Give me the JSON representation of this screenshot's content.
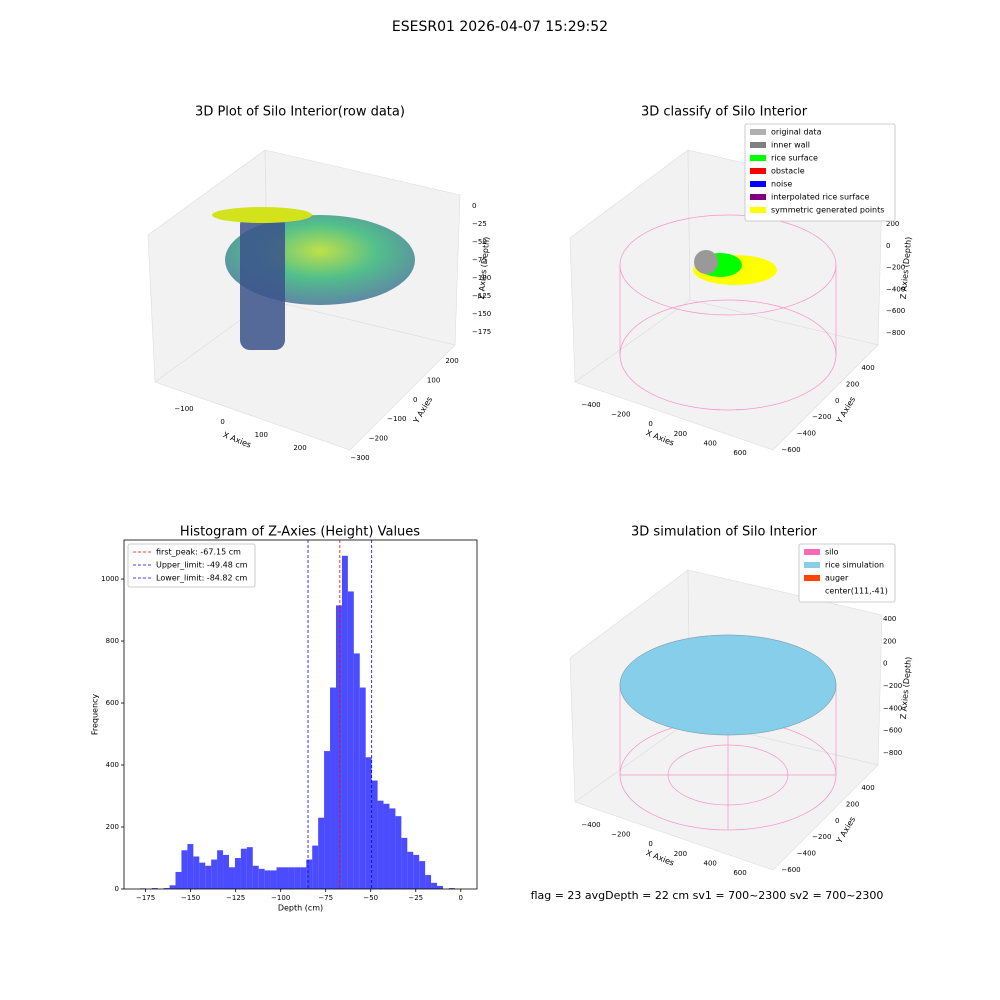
{
  "suptitle": "ESESR01 2026-04-07 15:29:52",
  "footer": "flag = 23  avgDepth = 22 cm    sv1 = 700~2300  sv2 = 700~2300",
  "chart_data": [
    {
      "type": "scatter3d",
      "title": "3D Plot of Silo Interior(row data)",
      "xlabel": "X Axies",
      "ylabel": "Y Axies",
      "zlabel": "Z Axies (Depth)",
      "xticks": [
        {
          "value": -100,
          "label": "−100"
        },
        0,
        100,
        200
      ],
      "yticks": [
        200,
        100,
        0,
        {
          "value": -100,
          "label": "−100"
        },
        {
          "value": -200,
          "label": "−200"
        },
        {
          "value": -300,
          "label": "−300"
        }
      ],
      "zticks": [
        0,
        {
          "value": -25,
          "label": "−25"
        },
        {
          "value": -50,
          "label": "−50"
        },
        {
          "value": -75,
          "label": "−75"
        },
        {
          "value": -100,
          "label": "−100"
        },
        {
          "value": -125,
          "label": "−125"
        },
        {
          "value": -150,
          "label": "−150"
        },
        {
          "value": -175,
          "label": "−175"
        }
      ]
    },
    {
      "type": "scatter3d",
      "title": "3D classify of Silo Interior",
      "xlabel": "X Axies",
      "ylabel": "Y Axies",
      "zlabel": "Z Axies (Depth)",
      "xticks": [
        {
          "value": -400,
          "label": "−400"
        },
        {
          "value": -200,
          "label": "−200"
        },
        0,
        200,
        400,
        600
      ],
      "yticks": [
        400,
        200,
        0,
        {
          "value": -200,
          "label": "−200"
        },
        {
          "value": -400,
          "label": "−400"
        },
        {
          "value": -600,
          "label": "−600"
        }
      ],
      "zticks": [
        200,
        0,
        {
          "value": -200,
          "label": "−200"
        },
        {
          "value": -400,
          "label": "−400"
        },
        {
          "value": -600,
          "label": "−600"
        },
        {
          "value": -800,
          "label": "−800"
        }
      ],
      "legend": [
        {
          "name": "original data",
          "color": "#b0b0b0"
        },
        {
          "name": "inner wall",
          "color": "#808080"
        },
        {
          "name": "rice surface",
          "color": "#00ff00"
        },
        {
          "name": "obstacle",
          "color": "#ff0000"
        },
        {
          "name": "noise",
          "color": "#0000ff"
        },
        {
          "name": "interpolated rice surface",
          "color": "#800080"
        },
        {
          "name": "symmetric generated points",
          "color": "#ffff00"
        }
      ]
    },
    {
      "type": "histogram",
      "title": "Histogram of Z-Axies (Height) Values",
      "xlabel": "Depth (cm)",
      "ylabel": "Frequency",
      "color": "#0000ff",
      "bins": [
        -178.2,
        -174.9,
        -171.6,
        -168.3,
        -165,
        -161.7,
        -158.4,
        -155.1,
        -151.8,
        -148.5,
        -145.2,
        -141.9,
        -138.6,
        -135.3,
        -132,
        -128.7,
        -125.4,
        -122.1,
        -118.8,
        -115.5,
        -112.2,
        -108.9,
        -105.6,
        -102.3,
        -99,
        -95.7,
        -92.4,
        -89.1,
        -85.8,
        -82.5,
        -79.2,
        -75.9,
        -72.6,
        -69.3,
        -66,
        -62.7,
        -59.4,
        -56.1,
        -52.8,
        -49.5,
        -46.2,
        -42.9,
        -39.6,
        -36.3,
        -33,
        -29.7,
        -26.4,
        -23.1,
        -19.8,
        -16.5,
        -13.2,
        -9.9,
        -6.6,
        -3.3
      ],
      "values": [
        2,
        0,
        3,
        0,
        3,
        12,
        55,
        125,
        145,
        105,
        85,
        75,
        95,
        125,
        110,
        70,
        100,
        130,
        135,
        75,
        65,
        60,
        60,
        70,
        70,
        70,
        70,
        70,
        95,
        140,
        230,
        445,
        650,
        915,
        1075,
        960,
        760,
        650,
        425,
        350,
        285,
        275,
        260,
        235,
        165,
        120,
        110,
        90,
        45,
        20,
        10,
        0,
        3
      ],
      "xlim": [
        -187,
        9
      ],
      "ylim": [
        0,
        1126
      ],
      "xticks": [
        {
          "value": -175,
          "label": "−175"
        },
        {
          "value": -150,
          "label": "−150"
        },
        {
          "value": -125,
          "label": "−125"
        },
        {
          "value": -100,
          "label": "−100"
        },
        {
          "value": -75,
          "label": "−75"
        },
        {
          "value": -50,
          "label": "−50"
        },
        {
          "value": -25,
          "label": "−25"
        },
        0
      ],
      "yticks": [
        0,
        200,
        400,
        600,
        800,
        1000
      ],
      "lines": [
        {
          "name": "first_peak: -67.15 cm",
          "value": -67.15,
          "color": "#ff0000"
        },
        {
          "name": "Upper_limit: -49.48 cm",
          "value": -49.48,
          "color": "#0000ff"
        },
        {
          "name": "Lower_limit: -84.82 cm",
          "value": -84.82,
          "color": "#0000ff"
        }
      ],
      "legend_loc": "upper left"
    },
    {
      "type": "scatter3d",
      "title": "3D simulation of Silo Interior",
      "xlabel": "X Axies",
      "ylabel": "Y Axies",
      "zlabel": "Z Axies (Depth)",
      "xticks": [
        {
          "value": -400,
          "label": "−400"
        },
        {
          "value": -200,
          "label": "−200"
        },
        0,
        200,
        400,
        600
      ],
      "yticks": [
        400,
        200,
        0,
        {
          "value": -200,
          "label": "−200"
        },
        {
          "value": -400,
          "label": "−400"
        },
        {
          "value": -600,
          "label": "−600"
        }
      ],
      "zticks": [
        400,
        200,
        0,
        {
          "value": -200,
          "label": "−200"
        },
        {
          "value": -400,
          "label": "−400"
        },
        {
          "value": -600,
          "label": "−600"
        },
        {
          "value": -800,
          "label": "−800"
        }
      ],
      "legend": [
        {
          "name": "silo",
          "color": "#ff69b4"
        },
        {
          "name": "rice simulation",
          "color": "#87ceeb"
        },
        {
          "name": "auger",
          "color": "#ff4500"
        },
        {
          "name": "center(111,-41)"
        }
      ]
    }
  ]
}
